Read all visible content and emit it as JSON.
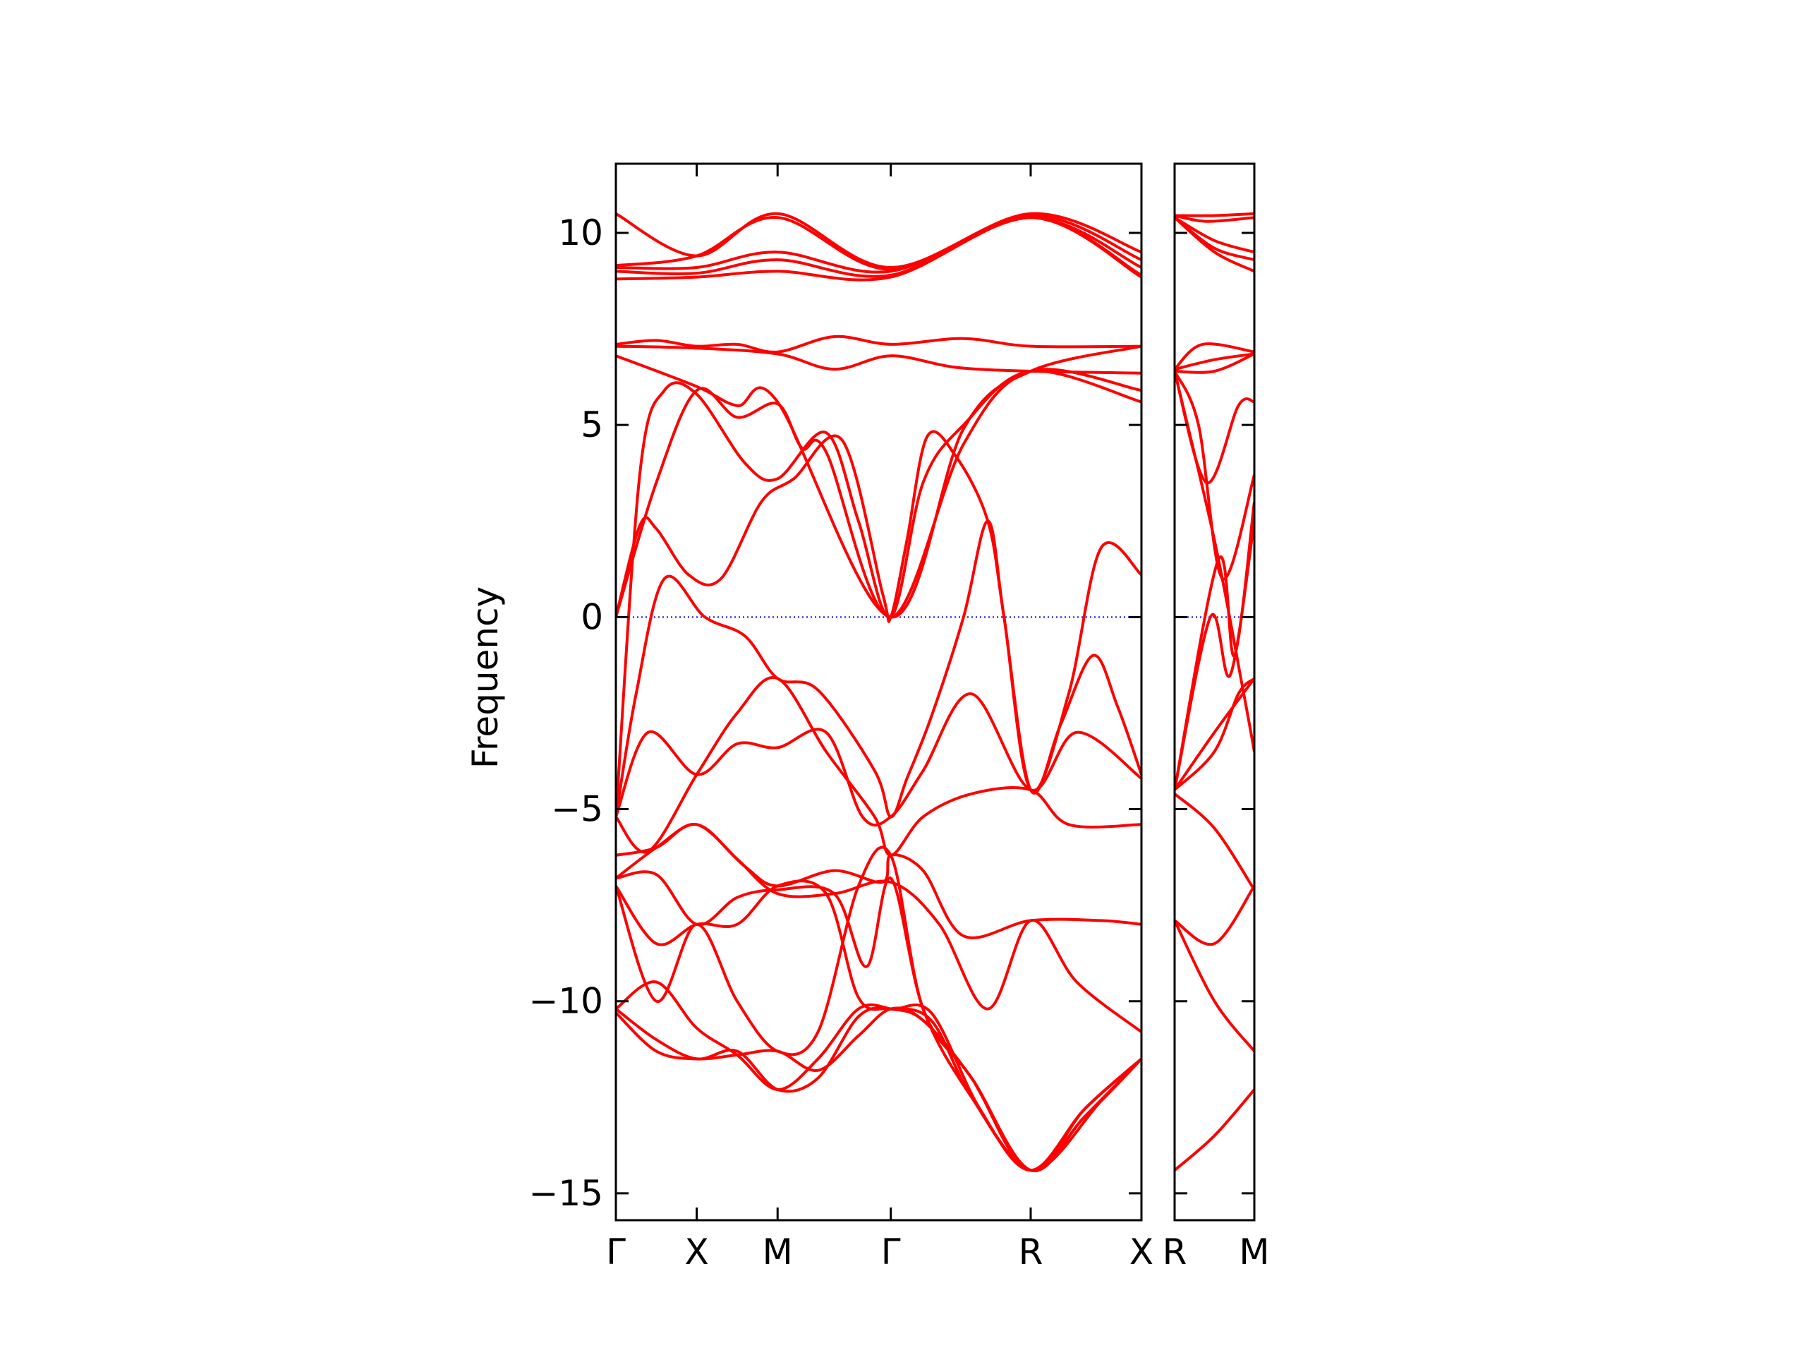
{
  "chart_data": {
    "type": "line",
    "ylabel": "Frequency",
    "ylim": [
      -15.7,
      11.8
    ],
    "yticks": [
      10,
      5,
      0,
      -5,
      -10,
      -15
    ],
    "ytick_labels": [
      "10",
      "5",
      "0",
      "−5",
      "−10",
      "−15"
    ],
    "zero_line": {
      "y": 0,
      "color": "#0000ff",
      "style": "dotted"
    },
    "line_color": "#ff0000",
    "panels": [
      {
        "name": "main",
        "xlim": [
          0,
          6.5
        ],
        "xticks": [
          0,
          1,
          2,
          3.4,
          5.13,
          6.5
        ],
        "xtick_labels": [
          "Γ",
          "X",
          "M",
          "Γ",
          "R",
          "X"
        ],
        "series": [
          {
            "x": [
              0,
              1,
              2,
              3.4,
              5.13,
              6.5
            ],
            "y": [
              10.5,
              9.4,
              10.5,
              9.1,
              10.5,
              9.5
            ]
          },
          {
            "x": [
              0,
              1,
              2,
              3.4,
              5.13,
              6.5
            ],
            "y": [
              9.15,
              9.4,
              10.4,
              9.05,
              10.45,
              9.3
            ]
          },
          {
            "x": [
              0,
              1,
              2,
              3.4,
              5.13,
              6.5
            ],
            "y": [
              9.1,
              9.1,
              9.5,
              9.0,
              10.4,
              9.1
            ]
          },
          {
            "x": [
              0,
              1,
              2,
              3.4,
              5.13,
              6.5
            ],
            "y": [
              9.0,
              8.95,
              9.3,
              8.9,
              10.4,
              8.9
            ]
          },
          {
            "x": [
              0,
              1,
              2,
              3.4,
              5.13,
              6.5
            ],
            "y": [
              8.8,
              8.85,
              9.0,
              8.85,
              10.4,
              8.85
            ]
          },
          {
            "x": [
              0,
              0.5,
              1,
              1.5,
              2,
              2.7,
              3.4,
              4.3,
              5.13,
              6.5
            ],
            "y": [
              7.1,
              7.2,
              7.05,
              7.1,
              6.9,
              7.3,
              7.1,
              7.25,
              7.05,
              7.05
            ]
          },
          {
            "x": [
              0,
              1,
              2,
              2.7,
              3.4,
              4.2,
              5.13,
              6.5
            ],
            "y": [
              7.05,
              7.0,
              6.85,
              6.45,
              6.8,
              6.5,
              6.4,
              6.35
            ]
          },
          {
            "x": [
              0,
              1,
              1.5,
              2,
              3.4,
              4.3,
              5.13,
              6.5
            ],
            "y": [
              6.8,
              6.0,
              5.5,
              5.6,
              0,
              4.9,
              6.4,
              7.05
            ]
          },
          {
            "x": [
              0,
              0.5,
              1,
              1.5,
              2,
              2.3,
              2.6,
              3.4,
              4.3,
              5.13,
              6.5
            ],
            "y": [
              0,
              3.5,
              5.9,
              5.2,
              5.55,
              4.4,
              4.3,
              0,
              4.5,
              6.4,
              5.9
            ]
          },
          {
            "x": [
              0,
              0.3,
              0.6,
              1,
              1.6,
              2,
              2.6,
              3.0,
              3.4,
              3.8,
              4.3,
              5.13,
              6.5
            ],
            "y": [
              -5.2,
              3.8,
              5.9,
              5.8,
              4.0,
              3.6,
              4.8,
              2.5,
              0,
              3.5,
              5.0,
              6.4,
              5.6
            ]
          },
          {
            "x": [
              0,
              0.3,
              0.5,
              0.9,
              1.3,
              1.8,
              2.2,
              2.8,
              3.3,
              3.4,
              3.6,
              3.85,
              4.2,
              4.6,
              4.8,
              5.13,
              5.6,
              6.0,
              6.5
            ],
            "y": [
              0,
              2.4,
              2.3,
              1.1,
              1.0,
              3.0,
              3.6,
              4.6,
              0.6,
              0,
              2.0,
              4.7,
              4.2,
              2.5,
              0,
              -4.5,
              -2.0,
              1.8,
              1.1
            ]
          },
          {
            "x": [
              0,
              0.25,
              0.6,
              1.1,
              1.6,
              2,
              2.5,
              3.2,
              3.4,
              3.6,
              3.9,
              4.3,
              4.6,
              4.8,
              5.13,
              5.5,
              5.9,
              6.2,
              6.5
            ],
            "y": [
              -5.2,
              -2.0,
              1.0,
              0,
              -0.5,
              -1.6,
              -1.9,
              -4.0,
              -5.2,
              -4.2,
              -2.6,
              0,
              2.5,
              0,
              -4.5,
              -2.8,
              -1.0,
              -2.3,
              -4.1
            ]
          },
          {
            "x": [
              0,
              0.4,
              1,
              1.5,
              2,
              2.6,
              3.05,
              3.4,
              3.8,
              4.4,
              5.13,
              5.7,
              6.5
            ],
            "y": [
              -5.2,
              -3.0,
              -4.1,
              -3.3,
              -3.4,
              -3.0,
              -5.2,
              -5.2,
              -4.0,
              -2.0,
              -4.5,
              -3.0,
              -4.2
            ]
          },
          {
            "x": [
              0,
              0.4,
              1,
              1.5,
              2,
              2.6,
              3.2,
              3.4,
              3.8,
              4.4,
              5.13,
              5.6,
              6.5
            ],
            "y": [
              -5.2,
              -6.1,
              -4.1,
              -2.5,
              -1.6,
              -3.5,
              -5.2,
              -6.2,
              -5.2,
              -4.6,
              -4.5,
              -5.4,
              -5.4
            ]
          },
          {
            "x": [
              0,
              0.5,
              1,
              1.6,
              2,
              2.7,
              3.3,
              3.4,
              3.8,
              4.3,
              5.13,
              6.0,
              6.5
            ],
            "y": [
              -6.2,
              -6.0,
              -5.4,
              -6.5,
              -7.0,
              -6.6,
              -6.9,
              -6.2,
              -6.6,
              -8.3,
              -7.9,
              -7.9,
              -8.0
            ]
          },
          {
            "x": [
              0,
              0.5,
              1,
              1.5,
              2,
              2.7,
              3.4,
              4.0,
              4.6,
              5.13,
              5.7,
              6.5
            ],
            "y": [
              -6.8,
              -6.0,
              -5.4,
              -6.3,
              -7.2,
              -7.2,
              -6.9,
              -8.0,
              -10.2,
              -7.9,
              -9.5,
              -10.8
            ]
          },
          {
            "x": [
              0,
              0.5,
              1,
              1.5,
              2,
              2.7,
              3.1,
              3.4,
              3.8,
              4.4,
              5.13,
              5.8,
              6.5
            ],
            "y": [
              -6.8,
              -6.7,
              -8.0,
              -7.3,
              -7.1,
              -7.2,
              -9.1,
              -6.8,
              -10.2,
              -12.5,
              -14.4,
              -12.8,
              -11.5
            ]
          },
          {
            "x": [
              0,
              0.5,
              1,
              1.5,
              2,
              2.6,
              3.0,
              3.4,
              3.9,
              4.5,
              5.13,
              5.8,
              6.5
            ],
            "y": [
              -7.0,
              -8.5,
              -8.0,
              -8.0,
              -7.0,
              -7.2,
              -9.9,
              -10.2,
              -10.3,
              -12.8,
              -14.4,
              -12.8,
              -11.5
            ]
          },
          {
            "x": [
              0,
              0.5,
              1,
              1.5,
              2,
              2.5,
              3.0,
              3.4,
              3.8,
              4.4,
              5.13,
              5.8,
              6.5
            ],
            "y": [
              -7.0,
              -10.0,
              -8.0,
              -10.0,
              -11.3,
              -10.8,
              -7.0,
              -6.2,
              -10.2,
              -12.0,
              -14.4,
              -12.8,
              -11.5
            ]
          },
          {
            "x": [
              0,
              0.5,
              1,
              1.5,
              2,
              2.5,
              3.0,
              3.4,
              3.8,
              4.4,
              5.13,
              5.8,
              6.5
            ],
            "y": [
              -10.2,
              -9.5,
              -10.7,
              -11.4,
              -12.3,
              -11.5,
              -10.2,
              -10.2,
              -10.5,
              -12.0,
              -14.4,
              -13.0,
              -11.5
            ]
          },
          {
            "x": [
              0,
              0.5,
              1,
              1.5,
              2,
              2.5,
              3.0,
              3.4,
              3.9,
              4.4,
              5.13,
              5.8,
              6.5
            ],
            "y": [
              -10.2,
              -11.0,
              -11.5,
              -11.3,
              -12.3,
              -12.0,
              -10.4,
              -10.2,
              -10.5,
              -12.5,
              -14.4,
              -13.0,
              -11.5
            ]
          },
          {
            "x": [
              0,
              0.5,
              1,
              1.5,
              2,
              2.5,
              3.0,
              3.4,
              3.8,
              4.4,
              5.13,
              6.0,
              6.5
            ],
            "y": [
              -10.3,
              -11.3,
              -11.5,
              -11.4,
              -11.3,
              -11.8,
              -10.9,
              -10.2,
              -10.5,
              -12.0,
              -14.4,
              -12.6,
              -11.5
            ]
          }
        ]
      },
      {
        "name": "right",
        "xlim": [
          0,
          1
        ],
        "xticks": [
          0,
          1
        ],
        "xtick_labels": [
          "R",
          "M"
        ],
        "series": [
          {
            "x": [
              0,
              0.5,
              1
            ],
            "y": [
              10.45,
              10.45,
              10.5
            ]
          },
          {
            "x": [
              0,
              0.4,
              1
            ],
            "y": [
              10.45,
              10.3,
              10.4
            ]
          },
          {
            "x": [
              0,
              0.5,
              1
            ],
            "y": [
              10.4,
              9.8,
              9.5
            ]
          },
          {
            "x": [
              0,
              0.5,
              1
            ],
            "y": [
              10.4,
              9.6,
              9.3
            ]
          },
          {
            "x": [
              0,
              0.5,
              1
            ],
            "y": [
              10.4,
              9.5,
              9.0
            ]
          },
          {
            "x": [
              0,
              0.35,
              1
            ],
            "y": [
              6.45,
              7.1,
              6.9
            ]
          },
          {
            "x": [
              0,
              0.5,
              1
            ],
            "y": [
              6.45,
              6.7,
              6.85
            ]
          },
          {
            "x": [
              0,
              0.5,
              1
            ],
            "y": [
              6.4,
              6.4,
              6.85
            ]
          },
          {
            "x": [
              0,
              0.4,
              0.8,
              1
            ],
            "y": [
              6.4,
              3.5,
              5.5,
              5.6
            ]
          },
          {
            "x": [
              0,
              0.3,
              0.6,
              1
            ],
            "y": [
              6.4,
              5.0,
              1.0,
              3.7
            ]
          },
          {
            "x": [
              0,
              0.5,
              0.85,
              1
            ],
            "y": [
              6.4,
              2.0,
              -1.8,
              -3.5
            ]
          },
          {
            "x": [
              0,
              0.55,
              0.75,
              1
            ],
            "y": [
              -4.5,
              1.5,
              -1.0,
              3.0
            ]
          },
          {
            "x": [
              0,
              0.45,
              0.7,
              1
            ],
            "y": [
              -4.5,
              0,
              -1.5,
              2.5
            ]
          },
          {
            "x": [
              0,
              0.5,
              0.8,
              1
            ],
            "y": [
              -4.5,
              -3.5,
              -2.0,
              -1.6
            ]
          },
          {
            "x": [
              0,
              0.5,
              1
            ],
            "y": [
              -4.5,
              -3.0,
              -1.6
            ]
          },
          {
            "x": [
              0,
              0.5,
              1
            ],
            "y": [
              -4.6,
              -5.5,
              -7.1
            ]
          },
          {
            "x": [
              0,
              0.5,
              1
            ],
            "y": [
              -7.9,
              -8.5,
              -7.0
            ]
          },
          {
            "x": [
              0,
              0.5,
              1
            ],
            "y": [
              -7.9,
              -10.0,
              -11.3
            ]
          },
          {
            "x": [
              0,
              0.5,
              1
            ],
            "y": [
              -14.4,
              -13.5,
              -12.3
            ]
          }
        ]
      }
    ]
  }
}
